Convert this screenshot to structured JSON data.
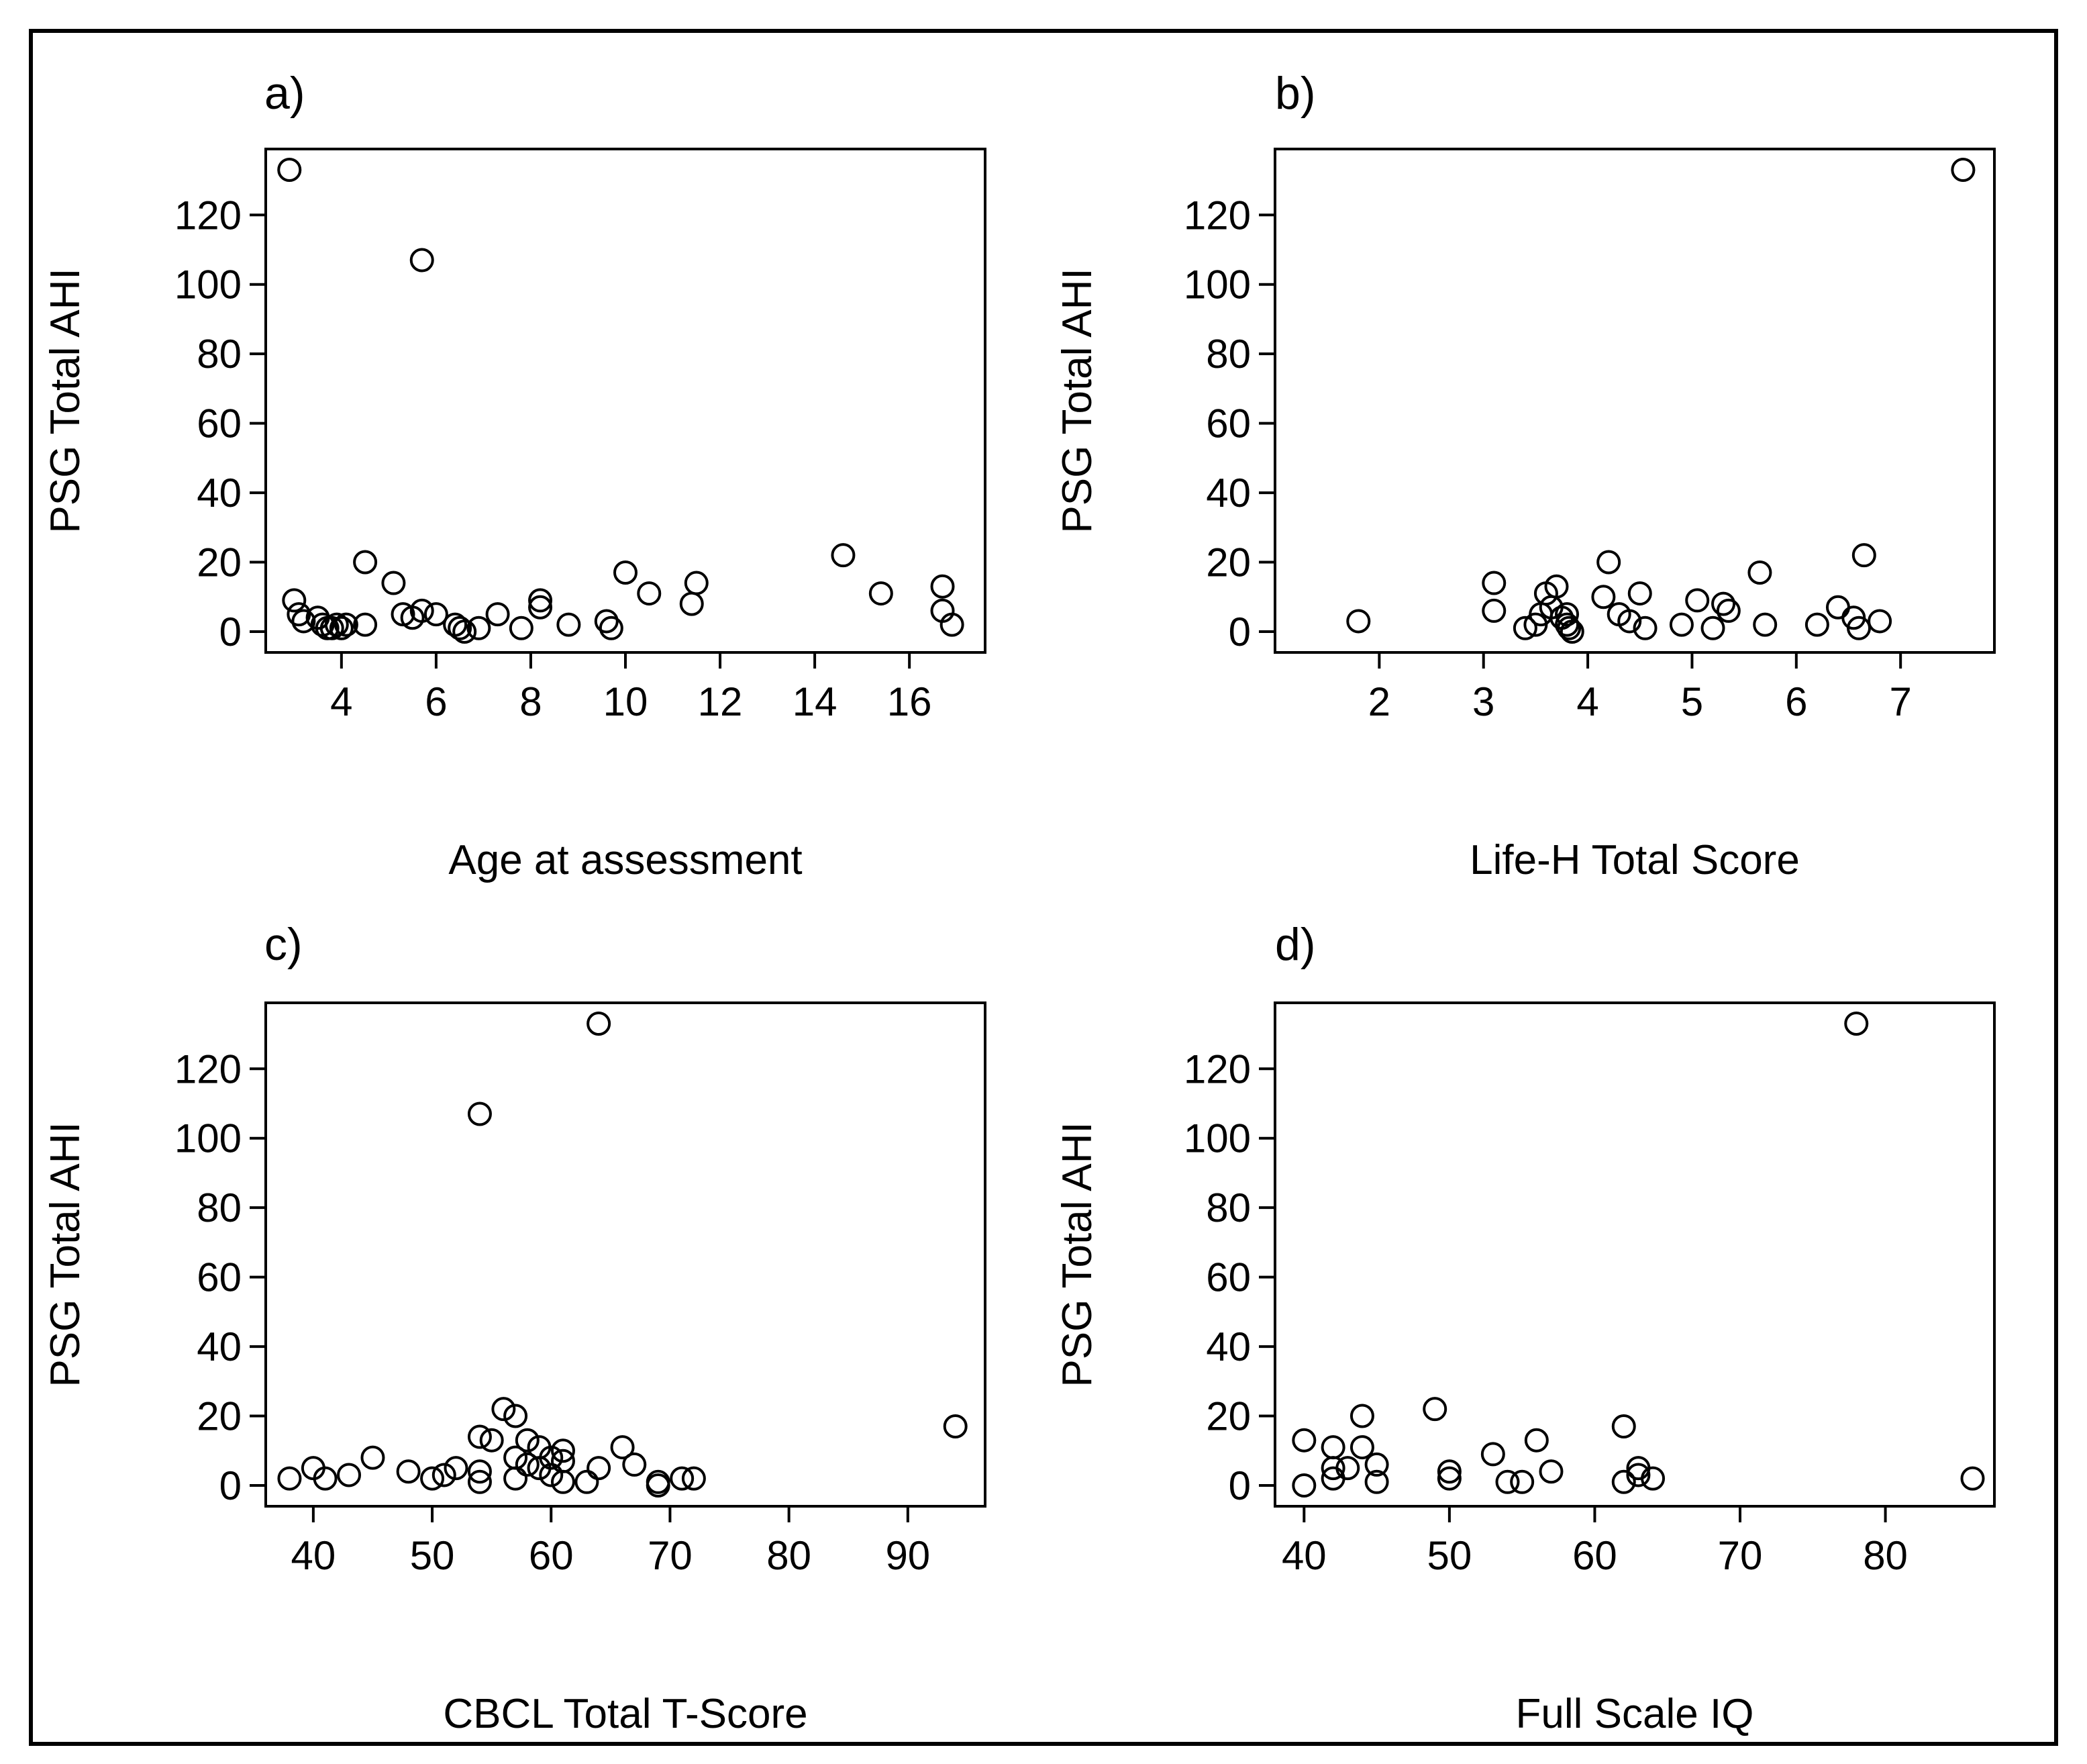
{
  "figure": {
    "border_color": "#000000",
    "background": "#ffffff"
  },
  "chart_data": [
    {
      "type": "scatter",
      "panel_label": "a)",
      "xlabel": "Age at assessment",
      "ylabel": "PSG Total AHI",
      "xlim": [
        2.4,
        17.6
      ],
      "ylim": [
        -6,
        139
      ],
      "xticks": [
        4,
        6,
        8,
        10,
        12,
        14,
        16
      ],
      "yticks": [
        0,
        20,
        40,
        60,
        80,
        100,
        120
      ],
      "x": [
        2.9,
        3.0,
        3.1,
        3.2,
        3.5,
        3.6,
        3.7,
        3.8,
        3.9,
        4.0,
        4.1,
        4.5,
        4.5,
        5.1,
        5.3,
        5.5,
        5.7,
        5.7,
        6.0,
        6.4,
        6.5,
        6.6,
        6.9,
        7.3,
        7.8,
        8.2,
        8.2,
        8.8,
        9.6,
        9.7,
        10.0,
        10.5,
        11.4,
        11.5,
        14.6,
        15.4,
        16.7,
        16.7,
        16.9
      ],
      "y": [
        133,
        9,
        5,
        3,
        4,
        2,
        1,
        1,
        2,
        1,
        2,
        2,
        20,
        14,
        5,
        4,
        107,
        6,
        5,
        2,
        1,
        0,
        1,
        5,
        1,
        9,
        7,
        2,
        3,
        1,
        17,
        11,
        8,
        14,
        22,
        11,
        13,
        6,
        2
      ]
    },
    {
      "type": "scatter",
      "panel_label": "b)",
      "xlabel": "Life-H Total Score",
      "ylabel": "PSG Total AHI",
      "xlim": [
        1.0,
        7.9
      ],
      "ylim": [
        -6,
        139
      ],
      "xticks": [
        2,
        3,
        4,
        5,
        6,
        7
      ],
      "yticks": [
        0,
        20,
        40,
        60,
        80,
        100,
        120
      ],
      "x": [
        1.8,
        3.1,
        3.1,
        3.4,
        3.5,
        3.55,
        3.6,
        3.65,
        3.7,
        3.75,
        3.8,
        3.8,
        3.82,
        3.85,
        4.15,
        4.2,
        4.3,
        4.4,
        4.5,
        4.55,
        4.9,
        5.05,
        5.2,
        5.3,
        5.35,
        5.65,
        5.7,
        6.2,
        6.4,
        6.55,
        6.6,
        6.65,
        6.8,
        7.6
      ],
      "y": [
        3,
        14,
        6,
        1,
        2,
        5,
        11,
        7,
        13,
        4,
        5,
        2,
        1,
        0,
        10,
        20,
        5,
        3,
        11,
        1,
        2,
        9,
        1,
        8,
        6,
        17,
        2,
        2,
        7,
        4,
        1,
        22,
        3,
        133
      ]
    },
    {
      "type": "scatter",
      "panel_label": "c)",
      "xlabel": "CBCL Total T-Score",
      "ylabel": "PSG Total AHI",
      "xlim": [
        36,
        96.5
      ],
      "ylim": [
        -6,
        139
      ],
      "xticks": [
        40,
        50,
        60,
        70,
        80,
        90
      ],
      "yticks": [
        0,
        20,
        40,
        60,
        80,
        100,
        120
      ],
      "x": [
        38,
        40,
        41,
        43,
        45,
        48,
        50,
        51,
        52,
        54,
        54,
        54,
        54,
        55,
        56,
        57,
        57,
        57,
        58,
        58,
        59,
        59,
        60,
        60,
        61,
        61,
        61,
        63,
        64,
        64,
        66,
        67,
        69,
        69,
        71,
        72,
        94
      ],
      "y": [
        2,
        5,
        2,
        3,
        8,
        4,
        2,
        3,
        5,
        107,
        14,
        4,
        1,
        13,
        22,
        20,
        8,
        2,
        13,
        6,
        11,
        5,
        3,
        8,
        10,
        7,
        1,
        1,
        5,
        133,
        11,
        6,
        1,
        0,
        2,
        2,
        17
      ]
    },
    {
      "type": "scatter",
      "panel_label": "d)",
      "xlabel": "Full Scale IQ",
      "ylabel": "PSG Total AHI",
      "xlim": [
        38,
        87.5
      ],
      "ylim": [
        -6,
        139
      ],
      "xticks": [
        40,
        50,
        60,
        70,
        80
      ],
      "yticks": [
        0,
        20,
        40,
        60,
        80,
        100,
        120
      ],
      "x": [
        40,
        40,
        42,
        42,
        42,
        43,
        44,
        44,
        45,
        45,
        49,
        50,
        50,
        53,
        54,
        55,
        56,
        57,
        62,
        62,
        63,
        63,
        64,
        78,
        86
      ],
      "y": [
        13,
        0,
        11,
        5,
        2,
        5,
        20,
        11,
        6,
        1,
        22,
        4,
        2,
        9,
        1,
        1,
        13,
        4,
        17,
        1,
        5,
        3,
        2,
        133,
        2
      ]
    }
  ]
}
